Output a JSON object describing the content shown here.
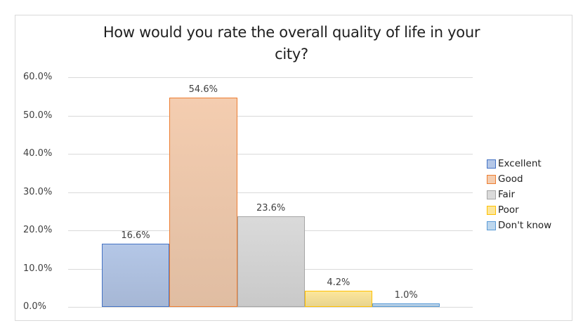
{
  "chart_data": {
    "type": "bar",
    "title": "How would you rate the overall quality of life in your city?",
    "title_lines": [
      "How would you rate the overall quality of life in your",
      "city?"
    ],
    "categories": [
      "Excellent",
      "Good",
      "Fair",
      "Poor",
      "Don't know"
    ],
    "values": [
      16.6,
      54.6,
      23.6,
      4.2,
      1.0
    ],
    "value_labels": [
      "16.6%",
      "54.6%",
      "23.6%",
      "4.2%",
      "1.0%"
    ],
    "xlabel": "",
    "ylabel": "",
    "ylim": [
      0,
      60
    ],
    "yticks": [
      "0.0%",
      "10.0%",
      "20.0%",
      "30.0%",
      "40.0%",
      "50.0%",
      "60.0%"
    ],
    "grid": true,
    "legend_position": "right",
    "legend": [
      "Excellent",
      "Good",
      "Fair",
      "Poor",
      "Don't know"
    ],
    "colors": {
      "fill": [
        "#b4c7e7",
        "#f4cdb0",
        "#dadada",
        "#fce69b",
        "#bdd7ee"
      ],
      "border": [
        "#4472c4",
        "#ed7d31",
        "#a5a5a5",
        "#ffc000",
        "#5b9bd5"
      ]
    }
  }
}
